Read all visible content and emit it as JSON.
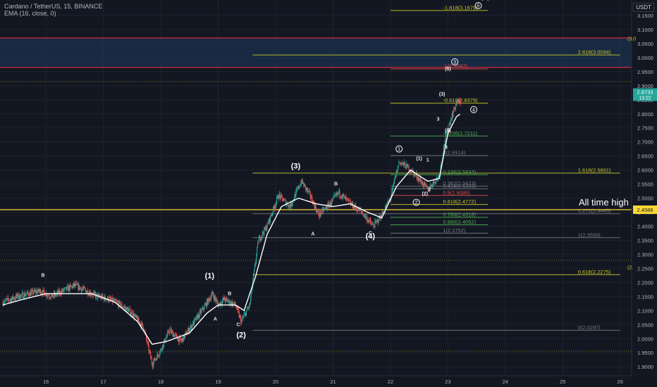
{
  "header": {
    "symbol_line": "Cardano / TetherUS, 15, BINANCE",
    "indicator_line": "EMA (16, close, 0)",
    "currency": "USDT"
  },
  "chart_data": {
    "type": "candlestick",
    "symbol": "Cardano / TetherUS",
    "interval": "15",
    "exchange": "BINANCE",
    "indicator": "EMA (16, close, 0)",
    "x_axis": {
      "range_days": [
        15.2,
        26.2
      ],
      "ticks": [
        {
          "label": "16",
          "x": 16
        },
        {
          "label": "17",
          "x": 17
        },
        {
          "label": "18",
          "x": 18
        },
        {
          "label": "19",
          "x": 19
        },
        {
          "label": "20",
          "x": 20
        },
        {
          "label": "21",
          "x": 21
        },
        {
          "label": "22",
          "x": 22
        },
        {
          "label": "23",
          "x": 23
        },
        {
          "label": "24",
          "x": 24
        },
        {
          "label": "25",
          "x": 25
        },
        {
          "label": "26",
          "x": 26
        }
      ]
    },
    "y_axis": {
      "range": [
        1.868,
        3.205
      ],
      "ticks": [
        "3.1500",
        "3.1000",
        "3.0500",
        "3.0000",
        "2.9500",
        "2.9000",
        "2.8500",
        "2.8000",
        "2.7500",
        "2.7000",
        "2.6500",
        "2.6000",
        "2.5500",
        "2.5000",
        "2.4500",
        "2.4000",
        "2.3500",
        "2.3000",
        "2.2500",
        "2.2000",
        "2.1500",
        "2.1000",
        "2.0500",
        "2.0000",
        "1.9500",
        "1.9000"
      ]
    },
    "price_path": [
      [
        15.25,
        2.13
      ],
      [
        15.5,
        2.15
      ],
      [
        15.7,
        2.16
      ],
      [
        15.9,
        2.17
      ],
      [
        16.1,
        2.15
      ],
      [
        16.3,
        2.17
      ],
      [
        16.5,
        2.19
      ],
      [
        16.7,
        2.17
      ],
      [
        16.9,
        2.15
      ],
      [
        17.1,
        2.14
      ],
      [
        17.3,
        2.12
      ],
      [
        17.5,
        2.09
      ],
      [
        17.7,
        2.04
      ],
      [
        17.85,
        1.91
      ],
      [
        18.0,
        1.96
      ],
      [
        18.15,
        2.03
      ],
      [
        18.35,
        1.99
      ],
      [
        18.55,
        2.05
      ],
      [
        18.75,
        2.11
      ],
      [
        18.9,
        2.16
      ],
      [
        19.0,
        2.12
      ],
      [
        19.1,
        2.14
      ],
      [
        19.3,
        2.12
      ],
      [
        19.4,
        2.06
      ],
      [
        19.55,
        2.12
      ],
      [
        19.7,
        2.35
      ],
      [
        19.85,
        2.4
      ],
      [
        20.05,
        2.51
      ],
      [
        20.25,
        2.47
      ],
      [
        20.45,
        2.56
      ],
      [
        20.6,
        2.51
      ],
      [
        20.75,
        2.44
      ],
      [
        20.95,
        2.48
      ],
      [
        21.1,
        2.52
      ],
      [
        21.3,
        2.48
      ],
      [
        21.5,
        2.45
      ],
      [
        21.7,
        2.4
      ],
      [
        21.85,
        2.44
      ],
      [
        22.0,
        2.5
      ],
      [
        22.15,
        2.63
      ],
      [
        22.3,
        2.61
      ],
      [
        22.45,
        2.58
      ],
      [
        22.65,
        2.53
      ],
      [
        22.85,
        2.58
      ],
      [
        22.95,
        2.71
      ],
      [
        23.05,
        2.78
      ],
      [
        23.15,
        2.84
      ],
      [
        23.22,
        2.84
      ]
    ],
    "ema_path": [
      [
        15.25,
        2.12
      ],
      [
        15.6,
        2.14
      ],
      [
        16.0,
        2.16
      ],
      [
        16.4,
        2.16
      ],
      [
        16.8,
        2.16
      ],
      [
        17.2,
        2.13
      ],
      [
        17.6,
        2.06
      ],
      [
        17.85,
        1.98
      ],
      [
        18.1,
        1.99
      ],
      [
        18.5,
        2.02
      ],
      [
        18.8,
        2.09
      ],
      [
        19.0,
        2.12
      ],
      [
        19.3,
        2.12
      ],
      [
        19.45,
        2.1
      ],
      [
        19.65,
        2.22
      ],
      [
        19.85,
        2.37
      ],
      [
        20.1,
        2.47
      ],
      [
        20.4,
        2.5
      ],
      [
        20.7,
        2.48
      ],
      [
        21.0,
        2.47
      ],
      [
        21.3,
        2.48
      ],
      [
        21.6,
        2.45
      ],
      [
        21.85,
        2.43
      ],
      [
        22.1,
        2.54
      ],
      [
        22.35,
        2.6
      ],
      [
        22.65,
        2.56
      ],
      [
        22.85,
        2.57
      ],
      [
        23.0,
        2.73
      ],
      [
        23.15,
        2.79
      ],
      [
        23.22,
        2.8
      ]
    ],
    "last_price": "2.8733",
    "countdown": "13:22",
    "horizontal_line_price": "2.4588",
    "fib_levels_right": [
      {
        "text": "-1.618(3.1679)",
        "value": 3.1679,
        "x_start": 22.0,
        "x_end": 23.7
      },
      {
        "text": "2.618(3.0094)",
        "value": 3.0094,
        "x_start": 19.6,
        "x_end": 26.0
      },
      {
        "text": "-1(2.9597)",
        "value": 2.9597,
        "x_start": 22.0,
        "x_end": 23.7
      },
      {
        "text": "-0.618(2.8379)",
        "value": 2.8379,
        "x_start": 22.0,
        "x_end": 23.7
      },
      {
        "text": "-0.236(2.7211)",
        "value": 2.7211,
        "x_start": 22.0,
        "x_end": 23.7
      },
      {
        "text": "0(2.6514)",
        "value": 2.6514,
        "x_start": 22.0,
        "x_end": 23.7
      },
      {
        "text": "1.618(2.5891)",
        "value": 2.5891,
        "x_start": 19.6,
        "x_end": 26.0
      },
      {
        "text": "0.236(2.5834)",
        "value": 2.5834,
        "x_start": 22.0,
        "x_end": 23.7
      },
      {
        "text": "0.382(2.5423)",
        "value": 2.5423,
        "x_start": 22.0,
        "x_end": 23.7
      },
      {
        "text": "0.414(2.5333)",
        "value": 2.5333,
        "x_start": 22.0,
        "x_end": 23.7
      },
      {
        "text": "0.5(2.5095)",
        "value": 2.5095,
        "x_start": 22.0,
        "x_end": 23.7
      },
      {
        "text": "0.618(2.4772)",
        "value": 2.4772,
        "x_start": 22.0,
        "x_end": 23.7
      },
      {
        "text": "1.272(2.4445)",
        "value": 2.4445,
        "x_start": 19.6,
        "x_end": 26.0
      },
      {
        "text": "0.786(2.4318)",
        "value": 2.4318,
        "x_start": 22.0,
        "x_end": 23.7
      },
      {
        "text": "0.886(2.4052)",
        "value": 2.4052,
        "x_start": 22.0,
        "x_end": 23.7
      },
      {
        "text": "1(2.3752)",
        "value": 2.3752,
        "x_start": 22.0,
        "x_end": 23.7
      },
      {
        "text": "1(2.3593)",
        "value": 2.3593,
        "x_start": 19.6,
        "x_end": 26.0
      },
      {
        "text": "0.618(2.2275)",
        "value": 2.2275,
        "x_start": 19.6,
        "x_end": 26.0
      },
      {
        "text": "0(2.0297)",
        "value": 2.0297,
        "x_start": 19.6,
        "x_end": 26.0
      }
    ],
    "resistance_zone": [
      2.965,
      3.07
    ],
    "wave_labels": [
      {
        "text": "(5)",
        "x": 23.65,
        "y": 3.21
      },
      {
        "text": "(3)",
        "x": 20.35,
        "y": 2.605
      },
      {
        "text": "(1)",
        "x": 18.85,
        "y": 2.215
      },
      {
        "text": "(2)",
        "x": 19.4,
        "y": 2.005
      },
      {
        "text": "(4)",
        "x": 21.65,
        "y": 2.356
      },
      {
        "text": "B",
        "x": 15.95,
        "y": 2.22
      },
      {
        "text": "B",
        "x": 19.2,
        "y": 2.155
      },
      {
        "text": "A",
        "x": 18.95,
        "y": 2.065
      },
      {
        "text": "C",
        "x": 19.35,
        "y": 2.045
      },
      {
        "text": "B",
        "x": 21.05,
        "y": 2.545
      },
      {
        "text": "A",
        "x": 20.65,
        "y": 2.368
      },
      {
        "text": "C",
        "x": 21.65,
        "y": 2.37
      },
      {
        "text": "(1)",
        "x": 22.5,
        "y": 2.635
      },
      {
        "text": "(2)",
        "x": 22.6,
        "y": 2.51
      },
      {
        "text": "1",
        "x": 22.65,
        "y": 2.63
      },
      {
        "text": "2",
        "x": 22.68,
        "y": 2.525
      },
      {
        "text": "3",
        "x": 22.83,
        "y": 2.775
      },
      {
        "text": "(3)",
        "x": 22.9,
        "y": 2.865
      },
      {
        "text": "4",
        "x": 22.97,
        "y": 2.675
      },
      {
        "text": "(4)",
        "x": 23.0,
        "y": 2.735
      },
      {
        "text": "(5)",
        "x": 23.0,
        "y": 2.955
      }
    ],
    "circled_labels": [
      {
        "text": "5",
        "x": 23.53,
        "y": 3.185
      },
      {
        "text": "3",
        "x": 23.12,
        "y": 2.985
      },
      {
        "text": "1",
        "x": 22.15,
        "y": 2.675
      },
      {
        "text": "2",
        "x": 22.45,
        "y": 2.485
      },
      {
        "text": "4",
        "x": 23.45,
        "y": 2.815
      }
    ],
    "annotation": "All time high",
    "right_edge_labels": [
      {
        "text": "(3.0",
        "value": 3.068
      },
      {
        "text": "(2.",
        "value": 2.255
      }
    ]
  },
  "colors": {
    "background": "#131722",
    "up_candle": "#26a69a",
    "down_candle": "#ef5350",
    "ema": "#ffffff",
    "fib_line": "#787b86",
    "fib_yellow": "#c9c62c",
    "fib_green": "#4caf50",
    "fib_red": "#e04f4f",
    "zone_fill": "#1b3a5c",
    "zone_border": "#ff2b4a",
    "price_line": "#fdd835",
    "last_price_bg": "#26a69a"
  }
}
